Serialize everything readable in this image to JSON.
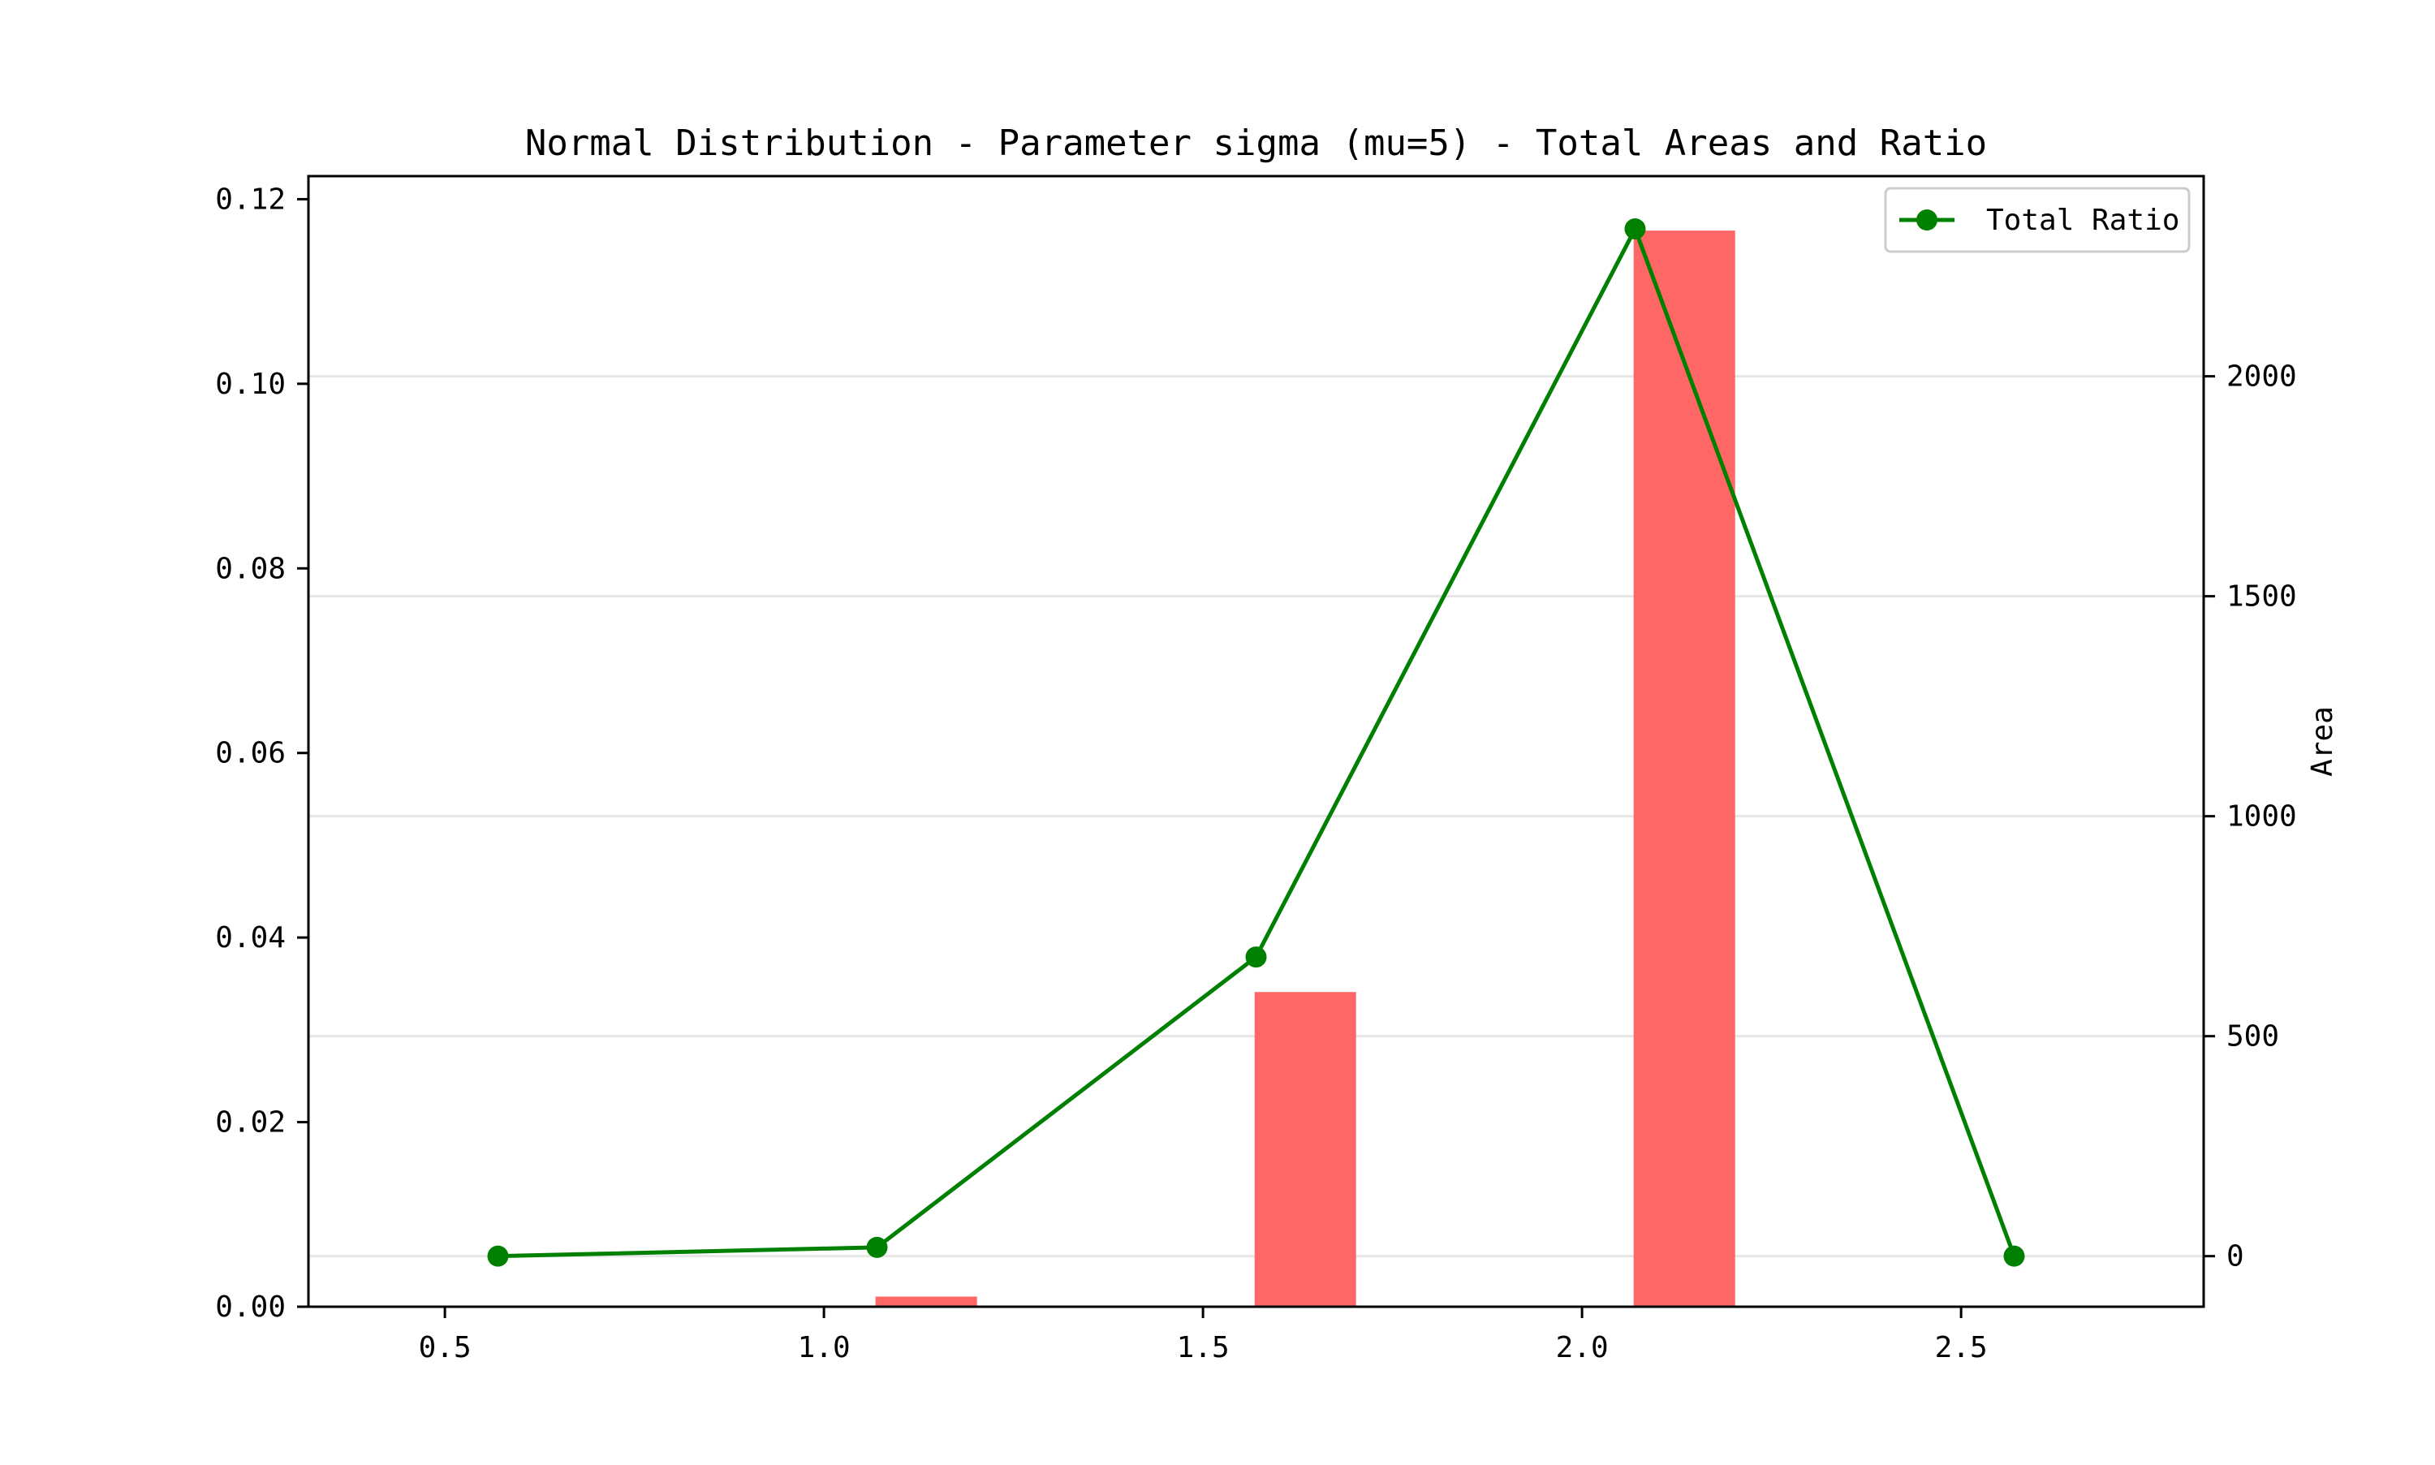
{
  "chart_data": {
    "type": "bar",
    "title": "Normal Distribution - Parameter sigma (mu=5) - Total Areas and Ratio",
    "xlabel": "",
    "ylabel_left": "",
    "ylabel_right": "Area",
    "xlim": [
      0.32,
      2.82
    ],
    "ylim_left": [
      0,
      0.1225
    ],
    "ylim_right": [
      -115,
      2455
    ],
    "xticks": [
      "0.5",
      "1.0",
      "1.5",
      "2.0",
      "2.5"
    ],
    "xtick_values": [
      0.5,
      1.0,
      1.5,
      2.0,
      2.5
    ],
    "yticks_left": [
      "0.00",
      "0.02",
      "0.04",
      "0.06",
      "0.08",
      "0.10",
      "0.12"
    ],
    "ytick_left_values": [
      0,
      0.02,
      0.04,
      0.06,
      0.08,
      0.1,
      0.12
    ],
    "yticks_right": [
      "0",
      "500",
      "1000",
      "1500",
      "2000"
    ],
    "ytick_right_values": [
      0,
      500,
      1000,
      1500,
      2000
    ],
    "grid": "horizontal (right axis)",
    "bars": {
      "axis": "left",
      "color": "#ff6666",
      "x": [
        0.5,
        1.0,
        1.5,
        2.0,
        2.5
      ],
      "values": [
        0.0,
        0.0011,
        0.0341,
        0.1166,
        0.0
      ]
    },
    "series": [
      {
        "name": "Total Ratio",
        "axis": "right",
        "color": "#008000",
        "x": [
          0.57,
          1.07,
          1.57,
          2.07,
          2.57
        ],
        "values": [
          0,
          20,
          680,
          2335,
          0
        ]
      }
    ],
    "legend_position": "top-right"
  }
}
